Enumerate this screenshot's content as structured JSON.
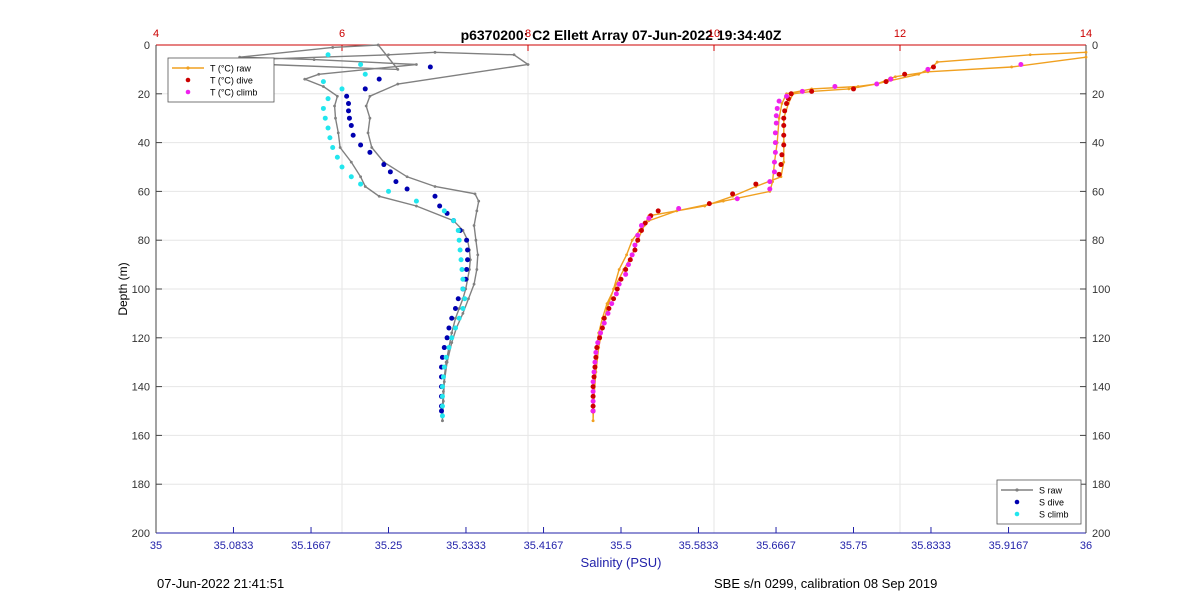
{
  "title": "p6370200: C2 Ellett Array 07-Jun-2022 19:34:40Z",
  "footer_left": "07-Jun-2022 21:41:51",
  "footer_right": "SBE s/n 0299, calibration 08 Sep 2019",
  "colors": {
    "raw": "#808080",
    "s_dive": "#0000b0",
    "s_climb": "#22e6ee",
    "t_raw": "#f0a020",
    "t_dive": "#cc0000",
    "t_climb": "#ee22ee",
    "top_axis": "#cc0000",
    "bottom_axis": "#2222aa"
  },
  "chart_data": {
    "type": "scatter",
    "title": "p6370200: C2 Ellett Array 07-Jun-2022 19:34:40Z",
    "ylabel": "Depth (m)",
    "ylim": [
      0,
      200
    ],
    "y_reversed": true,
    "y_ticks": [
      "0",
      "20",
      "40",
      "60",
      "80",
      "100",
      "120",
      "140",
      "160",
      "180",
      "200"
    ],
    "x_bottom": {
      "label": "Salinity (PSU)",
      "lim": [
        35,
        36
      ],
      "ticks": [
        "35",
        "35.0833",
        "35.1667",
        "35.25",
        "35.3333",
        "35.4167",
        "35.5",
        "35.5833",
        "35.6667",
        "35.75",
        "35.8333",
        "35.9167",
        "36"
      ]
    },
    "x_top": {
      "label": "",
      "lim": [
        4,
        14
      ],
      "ticks": [
        "4",
        "6",
        "8",
        "10",
        "12",
        "14"
      ]
    },
    "grid": true,
    "legend_temperature": {
      "placement": "top-left",
      "entries": [
        "T (°C) raw",
        "T (°C) dive",
        "T (°C) climb"
      ]
    },
    "legend_salinity": {
      "placement": "bottom-right",
      "entries": [
        "S raw",
        "S dive",
        "S climb"
      ]
    },
    "series": [
      {
        "name": "S raw",
        "axis": "salinity",
        "marker": "line",
        "points": [
          [
            35.239,
            0
          ],
          [
            35.19,
            1
          ],
          [
            35.09,
            5
          ],
          [
            35.17,
            6
          ],
          [
            35.28,
            8
          ],
          [
            35.175,
            12
          ],
          [
            35.16,
            14
          ],
          [
            35.18,
            17
          ],
          [
            35.195,
            21
          ],
          [
            35.192,
            25
          ],
          [
            35.193,
            30
          ],
          [
            35.196,
            36
          ],
          [
            35.198,
            42
          ],
          [
            35.21,
            48
          ],
          [
            35.22,
            54
          ],
          [
            35.225,
            58
          ],
          [
            35.24,
            62
          ],
          [
            35.28,
            66
          ],
          [
            35.32,
            72
          ],
          [
            35.33,
            76
          ],
          [
            35.335,
            80
          ],
          [
            35.337,
            84
          ],
          [
            35.338,
            88
          ],
          [
            35.337,
            92
          ],
          [
            35.335,
            96
          ],
          [
            35.333,
            100
          ],
          [
            35.33,
            104
          ],
          [
            35.326,
            108
          ],
          [
            35.322,
            112
          ],
          [
            35.318,
            118
          ],
          [
            35.315,
            124
          ],
          [
            35.312,
            130
          ],
          [
            35.31,
            136
          ],
          [
            35.309,
            142
          ],
          [
            35.308,
            148
          ],
          [
            35.308,
            154
          ],
          [
            35.308,
            154
          ],
          [
            35.309,
            146
          ],
          [
            35.31,
            138
          ],
          [
            35.313,
            130
          ],
          [
            35.318,
            122
          ],
          [
            35.323,
            116
          ],
          [
            35.33,
            110
          ],
          [
            35.336,
            104
          ],
          [
            35.342,
            98
          ],
          [
            35.345,
            92
          ],
          [
            35.346,
            86
          ],
          [
            35.344,
            80
          ],
          [
            35.342,
            74
          ],
          [
            35.345,
            68
          ],
          [
            35.347,
            64
          ],
          [
            35.343,
            61
          ],
          [
            35.3,
            58
          ],
          [
            35.27,
            54
          ],
          [
            35.245,
            48
          ],
          [
            35.232,
            42
          ],
          [
            35.228,
            36
          ],
          [
            35.23,
            30
          ],
          [
            35.226,
            25
          ],
          [
            35.23,
            21
          ],
          [
            35.26,
            16
          ],
          [
            35.4,
            8
          ],
          [
            35.385,
            4
          ],
          [
            35.3,
            3
          ],
          [
            35.25,
            4
          ],
          [
            35.1,
            6
          ],
          [
            35.12,
            8
          ],
          [
            35.26,
            10
          ],
          [
            35.239,
            0
          ]
        ]
      },
      {
        "name": "S dive",
        "axis": "salinity",
        "marker": "dot",
        "points": [
          [
            35.295,
            9
          ],
          [
            35.24,
            14
          ],
          [
            35.225,
            18
          ],
          [
            35.205,
            21
          ],
          [
            35.207,
            24
          ],
          [
            35.207,
            27
          ],
          [
            35.208,
            30
          ],
          [
            35.21,
            33
          ],
          [
            35.212,
            37
          ],
          [
            35.22,
            41
          ],
          [
            35.23,
            44
          ],
          [
            35.245,
            49
          ],
          [
            35.252,
            52
          ],
          [
            35.258,
            56
          ],
          [
            35.27,
            59
          ],
          [
            35.3,
            62
          ],
          [
            35.305,
            66
          ],
          [
            35.313,
            69
          ],
          [
            35.32,
            72
          ],
          [
            35.327,
            76
          ],
          [
            35.334,
            80
          ],
          [
            35.335,
            84
          ],
          [
            35.335,
            88
          ],
          [
            35.334,
            92
          ],
          [
            35.333,
            96
          ],
          [
            35.33,
            100
          ],
          [
            35.325,
            104
          ],
          [
            35.322,
            108
          ],
          [
            35.318,
            112
          ],
          [
            35.315,
            116
          ],
          [
            35.313,
            120
          ],
          [
            35.31,
            124
          ],
          [
            35.308,
            128
          ],
          [
            35.307,
            132
          ],
          [
            35.307,
            136
          ],
          [
            35.307,
            140
          ],
          [
            35.307,
            144
          ],
          [
            35.307,
            148
          ],
          [
            35.307,
            150
          ]
        ]
      },
      {
        "name": "S climb",
        "axis": "salinity",
        "marker": "dot",
        "points": [
          [
            35.185,
            4
          ],
          [
            35.22,
            8
          ],
          [
            35.225,
            12
          ],
          [
            35.18,
            15
          ],
          [
            35.2,
            18
          ],
          [
            35.185,
            22
          ],
          [
            35.18,
            26
          ],
          [
            35.182,
            30
          ],
          [
            35.185,
            34
          ],
          [
            35.187,
            38
          ],
          [
            35.19,
            42
          ],
          [
            35.195,
            46
          ],
          [
            35.2,
            50
          ],
          [
            35.21,
            54
          ],
          [
            35.22,
            57
          ],
          [
            35.25,
            60
          ],
          [
            35.28,
            64
          ],
          [
            35.31,
            68
          ],
          [
            35.32,
            72
          ],
          [
            35.325,
            76
          ],
          [
            35.326,
            80
          ],
          [
            35.327,
            84
          ],
          [
            35.328,
            88
          ],
          [
            35.329,
            92
          ],
          [
            35.33,
            96
          ],
          [
            35.33,
            100
          ],
          [
            35.332,
            104
          ],
          [
            35.33,
            108
          ],
          [
            35.326,
            112
          ],
          [
            35.322,
            116
          ],
          [
            35.318,
            120
          ],
          [
            35.315,
            124
          ],
          [
            35.312,
            128
          ],
          [
            35.31,
            132
          ],
          [
            35.309,
            136
          ],
          [
            35.308,
            140
          ],
          [
            35.308,
            144
          ],
          [
            35.308,
            148
          ],
          [
            35.308,
            152
          ]
        ]
      },
      {
        "name": "T (°C) raw",
        "axis": "temperature",
        "marker": "line",
        "points": [
          [
            14.0,
            3
          ],
          [
            13.4,
            4
          ],
          [
            12.4,
            7
          ],
          [
            12.35,
            9
          ],
          [
            12.2,
            12
          ],
          [
            11.85,
            15
          ],
          [
            11.75,
            16
          ],
          [
            11.45,
            18
          ],
          [
            11.05,
            19
          ],
          [
            10.85,
            20
          ],
          [
            10.8,
            24
          ],
          [
            10.75,
            30
          ],
          [
            10.75,
            40
          ],
          [
            10.75,
            48
          ],
          [
            10.72,
            54
          ],
          [
            10.45,
            58
          ],
          [
            10.2,
            62
          ],
          [
            9.9,
            66
          ],
          [
            9.3,
            70
          ],
          [
            9.25,
            74
          ],
          [
            9.18,
            80
          ],
          [
            9.12,
            86
          ],
          [
            9.03,
            92
          ],
          [
            8.95,
            98
          ],
          [
            8.85,
            106
          ],
          [
            8.8,
            112
          ],
          [
            8.76,
            118
          ],
          [
            8.74,
            124
          ],
          [
            8.72,
            132
          ],
          [
            8.71,
            140
          ],
          [
            8.7,
            148
          ],
          [
            8.7,
            154
          ],
          [
            8.7,
            154
          ],
          [
            8.71,
            144
          ],
          [
            8.73,
            134
          ],
          [
            8.76,
            124
          ],
          [
            8.8,
            116
          ],
          [
            8.85,
            108
          ],
          [
            8.92,
            100
          ],
          [
            8.98,
            92
          ],
          [
            9.06,
            86
          ],
          [
            9.12,
            80
          ],
          [
            9.2,
            76
          ],
          [
            9.3,
            72
          ],
          [
            9.6,
            68
          ],
          [
            10.1,
            64
          ],
          [
            10.6,
            60
          ],
          [
            10.63,
            56
          ],
          [
            10.65,
            48
          ],
          [
            10.68,
            40
          ],
          [
            10.7,
            30
          ],
          [
            10.73,
            24
          ],
          [
            10.78,
            20
          ],
          [
            11.05,
            18
          ],
          [
            11.55,
            17
          ],
          [
            11.75,
            16
          ],
          [
            11.95,
            13
          ],
          [
            12.3,
            11
          ],
          [
            13.2,
            9
          ],
          [
            14.0,
            5
          ]
        ]
      },
      {
        "name": "T (°C) dive",
        "axis": "temperature",
        "marker": "dot",
        "points": [
          [
            12.36,
            9
          ],
          [
            12.05,
            12
          ],
          [
            11.9,
            14
          ],
          [
            11.85,
            15
          ],
          [
            11.5,
            18
          ],
          [
            11.05,
            19
          ],
          [
            10.83,
            20
          ],
          [
            10.8,
            22
          ],
          [
            10.78,
            24
          ],
          [
            10.76,
            27
          ],
          [
            10.75,
            30
          ],
          [
            10.75,
            33
          ],
          [
            10.75,
            37
          ],
          [
            10.75,
            41
          ],
          [
            10.73,
            45
          ],
          [
            10.72,
            49
          ],
          [
            10.7,
            53
          ],
          [
            10.45,
            57
          ],
          [
            10.2,
            61
          ],
          [
            9.95,
            65
          ],
          [
            9.4,
            68
          ],
          [
            9.32,
            70
          ],
          [
            9.26,
            73
          ],
          [
            9.22,
            76
          ],
          [
            9.18,
            80
          ],
          [
            9.15,
            84
          ],
          [
            9.1,
            88
          ],
          [
            9.05,
            92
          ],
          [
            9.0,
            96
          ],
          [
            8.96,
            100
          ],
          [
            8.92,
            104
          ],
          [
            8.87,
            108
          ],
          [
            8.82,
            112
          ],
          [
            8.8,
            116
          ],
          [
            8.77,
            120
          ],
          [
            8.74,
            124
          ],
          [
            8.73,
            128
          ],
          [
            8.72,
            132
          ],
          [
            8.71,
            136
          ],
          [
            8.7,
            140
          ],
          [
            8.7,
            144
          ],
          [
            8.7,
            148
          ],
          [
            8.7,
            150
          ]
        ]
      },
      {
        "name": "T (°C) climb",
        "axis": "temperature",
        "marker": "dot",
        "points": [
          [
            13.3,
            8
          ],
          [
            12.3,
            10
          ],
          [
            11.9,
            14
          ],
          [
            11.75,
            16
          ],
          [
            11.3,
            17
          ],
          [
            10.95,
            19
          ],
          [
            10.78,
            21
          ],
          [
            10.7,
            23
          ],
          [
            10.68,
            26
          ],
          [
            10.67,
            29
          ],
          [
            10.67,
            32
          ],
          [
            10.66,
            36
          ],
          [
            10.66,
            40
          ],
          [
            10.66,
            44
          ],
          [
            10.65,
            48
          ],
          [
            10.65,
            52
          ],
          [
            10.6,
            56
          ],
          [
            10.6,
            59
          ],
          [
            10.25,
            63
          ],
          [
            9.62,
            67
          ],
          [
            9.3,
            71
          ],
          [
            9.22,
            74
          ],
          [
            9.18,
            78
          ],
          [
            9.15,
            82
          ],
          [
            9.12,
            86
          ],
          [
            9.08,
            90
          ],
          [
            9.05,
            94
          ],
          [
            8.98,
            98
          ],
          [
            8.95,
            102
          ],
          [
            8.9,
            106
          ],
          [
            8.86,
            110
          ],
          [
            8.82,
            114
          ],
          [
            8.78,
            118
          ],
          [
            8.75,
            122
          ],
          [
            8.73,
            126
          ],
          [
            8.72,
            130
          ],
          [
            8.71,
            134
          ],
          [
            8.7,
            138
          ],
          [
            8.7,
            142
          ],
          [
            8.7,
            146
          ],
          [
            8.7,
            150
          ]
        ]
      }
    ]
  }
}
